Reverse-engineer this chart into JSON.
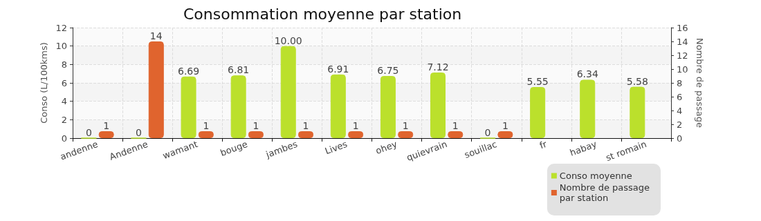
{
  "chart_data": {
    "type": "bar",
    "title": "Consommation moyenne par station",
    "ylabel": "Conso (L/100kms)",
    "y2label": "Nombre de passage",
    "categories": [
      "andenne",
      "Andenne",
      "wamant",
      "bouge",
      "jambes",
      "Lives",
      "ohey",
      "quievrain",
      "souillac",
      "fr",
      "habay",
      "st romain"
    ],
    "series": [
      {
        "name": "Conso moyenne",
        "color": "#bbe02c",
        "values": [
          0,
          0,
          6.69,
          6.81,
          10,
          6.91,
          6.75,
          7.12,
          0,
          5.55,
          6.34,
          5.58
        ],
        "value_labels": [
          "0",
          "0",
          "6.69",
          "6.81",
          "10.00",
          "6.91",
          "6.75",
          "7.12",
          "0",
          "5.55",
          "6.34",
          "5.58"
        ]
      },
      {
        "name": "Nombre de passage\npar station",
        "color": "#e0642e",
        "axis": "y2",
        "values": [
          1,
          14,
          1,
          1,
          1,
          1,
          1,
          1,
          1,
          null,
          null,
          null
        ],
        "value_labels": [
          "1",
          "14",
          "1",
          "1",
          "1",
          "1",
          "1",
          "1",
          "1",
          null,
          null,
          null
        ]
      }
    ],
    "ylim": [
      0,
      12
    ],
    "yticks": [
      0,
      2,
      4,
      6,
      8,
      10,
      12
    ],
    "y2lim": [
      0,
      16
    ],
    "y2ticks": [
      0,
      2,
      4,
      6,
      8,
      10,
      12,
      14,
      16
    ],
    "grid": true,
    "legend": "bottom right"
  }
}
